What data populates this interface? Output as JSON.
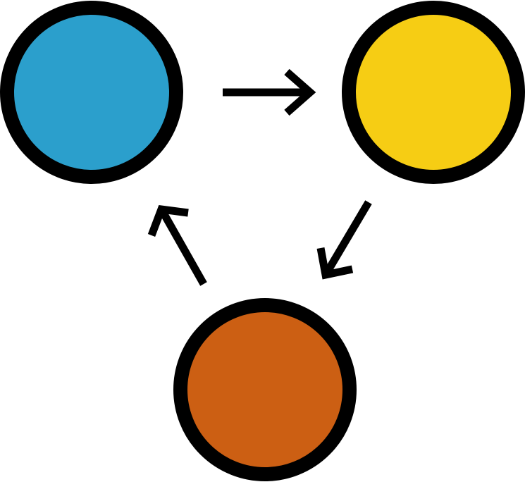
{
  "diagram": {
    "background": "#ffffff",
    "outline_color": "#000000",
    "nodes": [
      {
        "name": "blue-node",
        "fill": "#2b9fcc"
      },
      {
        "name": "yellow-node",
        "fill": "#f6cd14"
      },
      {
        "name": "orange-node",
        "fill": "#cc5f13"
      }
    ],
    "edges": [
      {
        "from": "blue-node",
        "to": "yellow-node"
      },
      {
        "from": "yellow-node",
        "to": "orange-node"
      },
      {
        "from": "orange-node",
        "to": "blue-node"
      }
    ]
  }
}
